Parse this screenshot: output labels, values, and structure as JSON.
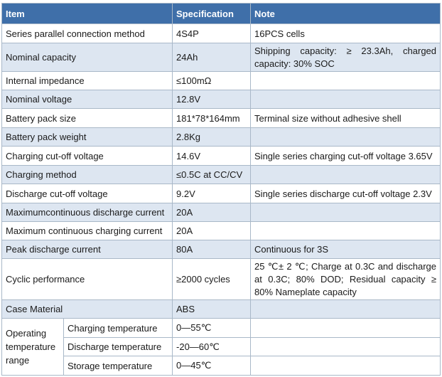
{
  "header": {
    "item": "Item",
    "specification": "Specification",
    "note": "Note"
  },
  "rows": [
    {
      "item": "Series parallel connection method",
      "spec": "4S4P",
      "note": "16PCS cells"
    },
    {
      "item": "Nominal capacity",
      "spec": "24Ah",
      "note": "Shipping capacity: ≥ 23.3Ah, charged capacity: 30% SOC"
    },
    {
      "item": "Internal impedance",
      "spec": "≤100mΩ",
      "note": ""
    },
    {
      "item": "Nominal voltage",
      "spec": "12.8V",
      "note": ""
    },
    {
      "item": "Battery pack size",
      "spec": "181*78*164mm",
      "note": "Terminal size without adhesive shell"
    },
    {
      "item": "Battery pack weight",
      "spec": "2.8Kg",
      "note": ""
    },
    {
      "item": "Charging cut-off voltage",
      "spec": "14.6V",
      "note": "Single series charging cut-off voltage 3.65V"
    },
    {
      "item": "Charging method",
      "spec": "≤0.5C at CC/CV",
      "note": ""
    },
    {
      "item": "Discharge cut-off voltage",
      "spec": "9.2V",
      "note": "Single series discharge cut-off voltage 2.3V"
    },
    {
      "item": "Maximumcontinuous discharge current",
      "spec": "20A",
      "note": ""
    },
    {
      "item": "Maximum continuous charging current",
      "spec": "20A",
      "note": ""
    },
    {
      "item": "Peak discharge current",
      "spec": "80A",
      "note": "Continuous for 3S"
    },
    {
      "item": "Cyclic performance",
      "spec": "≥2000 cycles",
      "note": "25 ℃± 2 ℃; Charge at 0.3C and discharge at 0.3C; 80% DOD; Residual capacity ≥ 80% Nameplate capacity"
    },
    {
      "item": "Case Material",
      "spec": "ABS",
      "note": ""
    }
  ],
  "temperature": {
    "label": "Operating temperature range",
    "rows": [
      {
        "sub": "Charging temperature",
        "spec": "0—55℃",
        "note": ""
      },
      {
        "sub": "Discharge temperature",
        "spec": "-20—60℃",
        "note": ""
      },
      {
        "sub": "Storage temperature",
        "spec": "0—45℃",
        "note": ""
      }
    ]
  }
}
